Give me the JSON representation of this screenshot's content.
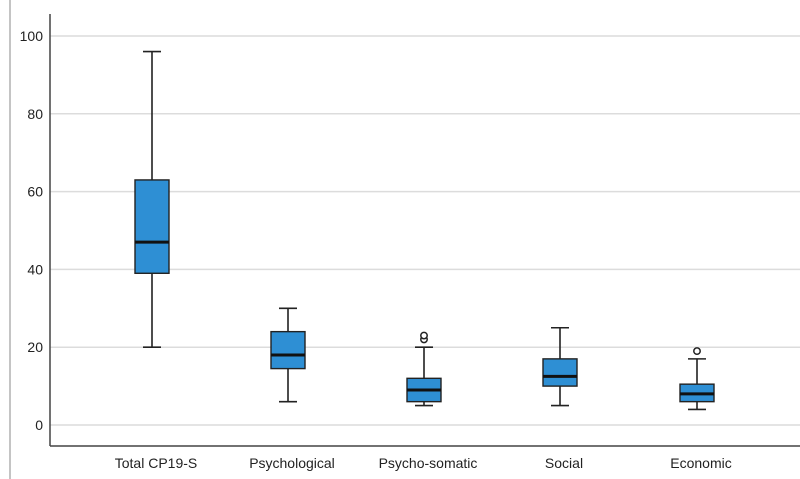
{
  "chart_data": {
    "type": "boxplot",
    "title": "",
    "xlabel": "",
    "ylabel": "",
    "ylim": [
      0,
      100
    ],
    "yticks": [
      0,
      20,
      40,
      60,
      80,
      100
    ],
    "grid": true,
    "categories": [
      "Total CP19-S",
      "Psychological",
      "Psycho-somatic",
      "Social",
      "Economic"
    ],
    "boxes": [
      {
        "category": "Total CP19-S",
        "min": 20,
        "q1": 39,
        "median": 47,
        "q3": 63,
        "max": 96,
        "outliers": []
      },
      {
        "category": "Psychological",
        "min": 6,
        "q1": 14.5,
        "median": 18,
        "q3": 24,
        "max": 30,
        "outliers": []
      },
      {
        "category": "Psycho-somatic",
        "min": 5,
        "q1": 6,
        "median": 9,
        "q3": 12,
        "max": 20,
        "outliers": [
          22,
          23
        ]
      },
      {
        "category": "Social",
        "min": 5,
        "q1": 10,
        "median": 12.5,
        "q3": 17,
        "max": 25,
        "outliers": []
      },
      {
        "category": "Economic",
        "min": 4,
        "q1": 6,
        "median": 8,
        "q3": 10.5,
        "max": 17,
        "outliers": [
          19
        ]
      }
    ]
  },
  "colors": {
    "box_fill": "#2e8fd4",
    "box_stroke": "#222222",
    "median": "#111111",
    "grid": "#dcdcdc",
    "axis": "#444444"
  }
}
